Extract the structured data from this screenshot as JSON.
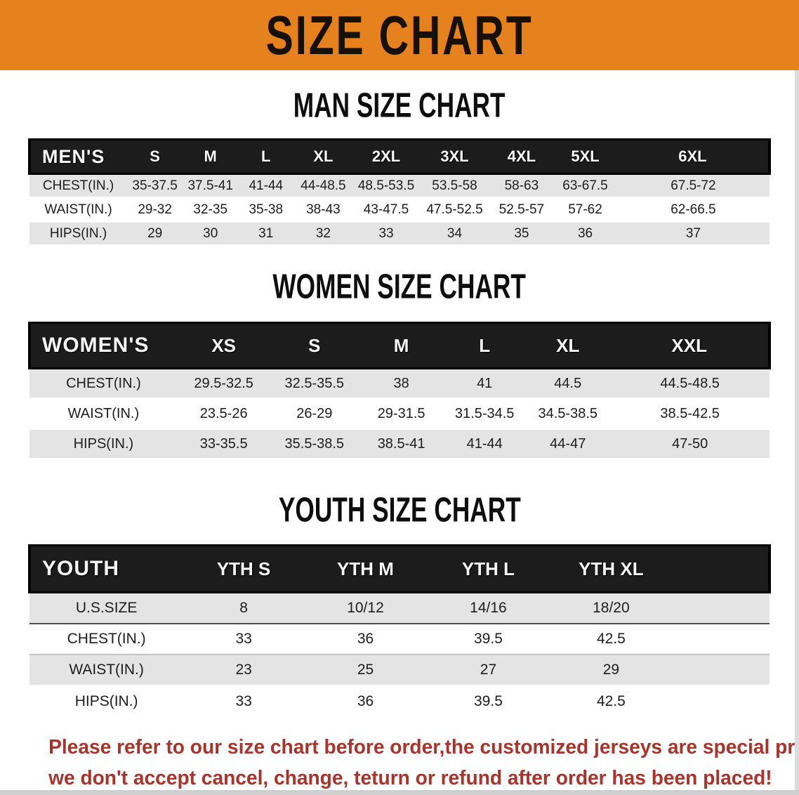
{
  "banner": {
    "title": "SIZE CHART",
    "bg_color": "#E5821D",
    "text_color": "#161007"
  },
  "sections": [
    {
      "heading": "MAN SIZE CHART",
      "header_label": "MEN'S",
      "columns": [
        "S",
        "M",
        "L",
        "XL",
        "2XL",
        "3XL",
        "4XL",
        "5XL",
        "6XL"
      ],
      "rows": [
        {
          "label": "CHEST(IN.)",
          "values": [
            "35-37.5",
            "37.5-41",
            "41-44",
            "44-48.5",
            "48.5-53.5",
            "53.5-58",
            "58-63",
            "63-67.5",
            "67.5-72"
          ]
        },
        {
          "label": "WAIST(IN.)",
          "values": [
            "29-32",
            "32-35",
            "35-38",
            "38-43",
            "43-47.5",
            "47.5-52.5",
            "52.5-57",
            "57-62",
            "62-66.5"
          ]
        },
        {
          "label": "HIPS(IN.)",
          "values": [
            "29",
            "30",
            "31",
            "32",
            "33",
            "34",
            "35",
            "36",
            "37"
          ]
        }
      ]
    },
    {
      "heading": "WOMEN SIZE CHART",
      "header_label": "WOMEN'S",
      "columns": [
        "XS",
        "S",
        "M",
        "L",
        "XL",
        "XXL"
      ],
      "rows": [
        {
          "label": "CHEST(IN.)",
          "values": [
            "29.5-32.5",
            "32.5-35.5",
            "38",
            "41",
            "44.5",
            "44.5-48.5"
          ]
        },
        {
          "label": "WAIST(IN.)",
          "values": [
            "23.5-26",
            "26-29",
            "29-31.5",
            "31.5-34.5",
            "34.5-38.5",
            "38.5-42.5"
          ]
        },
        {
          "label": "HIPS(IN.)",
          "values": [
            "33-35.5",
            "35.5-38.5",
            "38.5-41",
            "41-44",
            "44-47",
            "47-50"
          ]
        }
      ]
    },
    {
      "heading": "YOUTH SIZE CHART",
      "header_label": "YOUTH",
      "columns": [
        "YTH S",
        "YTH M",
        "YTH L",
        "YTH XL"
      ],
      "rows": [
        {
          "label": "U.S.SIZE",
          "values": [
            "8",
            "10/12",
            "14/16",
            "18/20"
          ]
        },
        {
          "label": "CHEST(IN.)",
          "values": [
            "33",
            "36",
            "39.5",
            "42.5"
          ]
        },
        {
          "label": "WAIST(IN.)",
          "values": [
            "23",
            "25",
            "27",
            "29"
          ]
        },
        {
          "label": "HIPS(IN.)",
          "values": [
            "33",
            "36",
            "39.5",
            "42.5"
          ]
        }
      ]
    }
  ],
  "disclaimer": {
    "lines": [
      "Please refer to our size chart before order,the customized jerseys are special products,",
      "we don't accept cancel, change, teturn or refund after order has been placed!"
    ],
    "color": "#A8342C"
  }
}
